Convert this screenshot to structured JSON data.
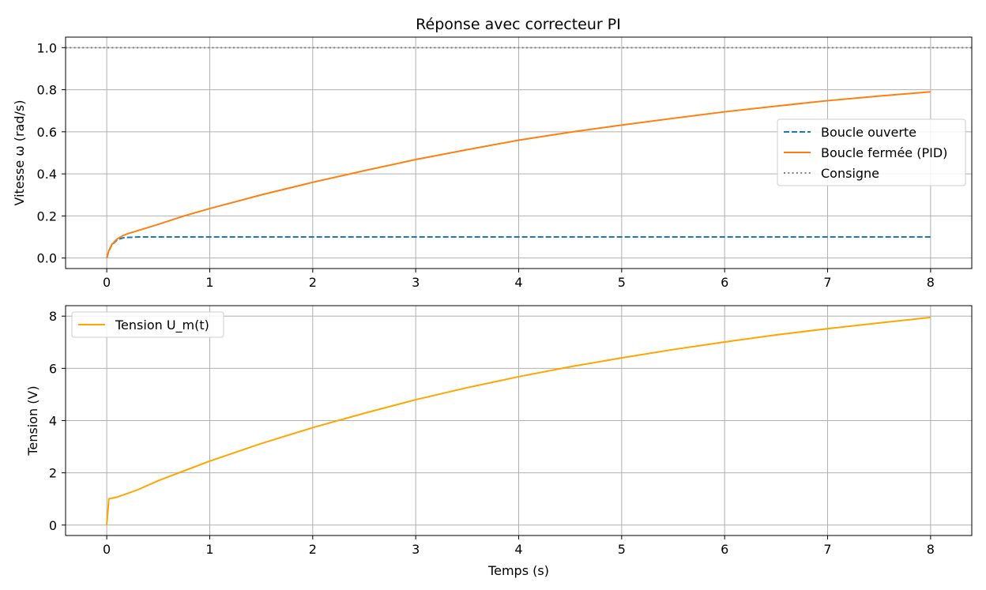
{
  "chart_data": [
    {
      "type": "line",
      "title": "Réponse avec correcteur PI",
      "xlabel": "",
      "ylabel": "Vitesse ω (rad/s)",
      "xlim": [
        -0.4,
        8.4
      ],
      "ylim": [
        -0.05,
        1.05
      ],
      "xticks": [
        "0",
        "1",
        "2",
        "3",
        "4",
        "5",
        "6",
        "7",
        "8"
      ],
      "yticks": [
        "0.0",
        "0.2",
        "0.4",
        "0.6",
        "0.8",
        "1.0"
      ],
      "grid": true,
      "legend_position": "center-right",
      "series": [
        {
          "name": "Boucle ouverte",
          "color": "#1f77b4",
          "style": "dashed",
          "x": [
            0,
            0.02,
            0.05,
            0.1,
            0.15,
            0.2,
            0.3,
            0.5,
            1,
            2,
            3,
            4,
            5,
            6,
            7,
            8
          ],
          "y": [
            0,
            0.033,
            0.063,
            0.086,
            0.095,
            0.098,
            0.1,
            0.1,
            0.1,
            0.1,
            0.1,
            0.1,
            0.1,
            0.1,
            0.1,
            0.1
          ]
        },
        {
          "name": "Boucle fermée (PID)",
          "color": "#ff7f0e",
          "style": "solid",
          "x": [
            0,
            0.02,
            0.05,
            0.1,
            0.15,
            0.2,
            0.3,
            0.5,
            0.75,
            1,
            1.5,
            2,
            2.5,
            3,
            3.5,
            4,
            4.5,
            5,
            5.5,
            6,
            6.5,
            7,
            7.5,
            8
          ],
          "y": [
            0,
            0.035,
            0.065,
            0.09,
            0.105,
            0.115,
            0.13,
            0.16,
            0.2,
            0.235,
            0.3,
            0.36,
            0.415,
            0.468,
            0.515,
            0.56,
            0.598,
            0.632,
            0.664,
            0.695,
            0.722,
            0.748,
            0.77,
            0.79
          ]
        },
        {
          "name": "Consigne",
          "color": "#808080",
          "style": "dotted",
          "x": [
            -0.4,
            8.4
          ],
          "y": [
            1.0,
            1.0
          ]
        }
      ]
    },
    {
      "type": "line",
      "title": "",
      "xlabel": "Temps (s)",
      "ylabel": "Tension (V)",
      "xlim": [
        -0.4,
        8.4
      ],
      "ylim": [
        -0.4,
        8.4
      ],
      "xticks": [
        "0",
        "1",
        "2",
        "3",
        "4",
        "5",
        "6",
        "7",
        "8"
      ],
      "yticks": [
        "0",
        "2",
        "4",
        "6",
        "8"
      ],
      "grid": true,
      "legend_position": "upper-left",
      "series": [
        {
          "name": "Tension U_m(t)",
          "color": "#ffa500",
          "style": "solid",
          "x": [
            0,
            0.02,
            0.05,
            0.1,
            0.3,
            0.5,
            1,
            1.5,
            2,
            2.5,
            3,
            3.5,
            4,
            4.5,
            5,
            5.5,
            6,
            6.5,
            7,
            7.5,
            8
          ],
          "y": [
            0,
            1.0,
            1.03,
            1.07,
            1.35,
            1.7,
            2.45,
            3.12,
            3.73,
            4.28,
            4.8,
            5.26,
            5.68,
            6.06,
            6.4,
            6.72,
            7.01,
            7.28,
            7.52,
            7.74,
            7.95
          ]
        }
      ]
    }
  ]
}
